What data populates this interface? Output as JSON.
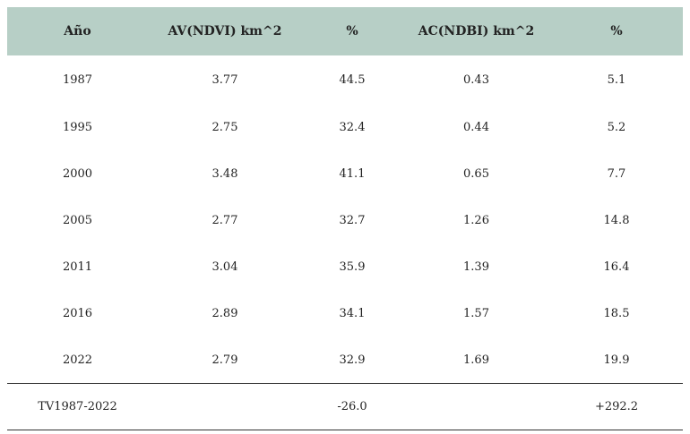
{
  "table": {
    "headers": [
      "Año",
      "AV(NDVI) km^2",
      "%",
      "AC(NDBI) km^2",
      "%"
    ],
    "rows": [
      [
        "1987",
        "3.77",
        "44.5",
        "0.43",
        "5.1"
      ],
      [
        "1995",
        "2.75",
        "32.4",
        "0.44",
        "5.2"
      ],
      [
        "2000",
        "3.48",
        "41.1",
        "0.65",
        "7.7"
      ],
      [
        "2005",
        "2.77",
        "32.7",
        "1.26",
        "14.8"
      ],
      [
        "2011",
        "3.04",
        "35.9",
        "1.39",
        "16.4"
      ],
      [
        "2016",
        "2.89",
        "34.1",
        "1.57",
        "18.5"
      ],
      [
        "2022",
        "2.79",
        "32.9",
        "1.69",
        "19.9"
      ]
    ],
    "summary": [
      "TV1987-2022",
      "",
      "-26.0",
      "",
      "+292.2"
    ]
  },
  "colors": {
    "header_bg": "#b7cfc6",
    "rule": "#333333"
  }
}
